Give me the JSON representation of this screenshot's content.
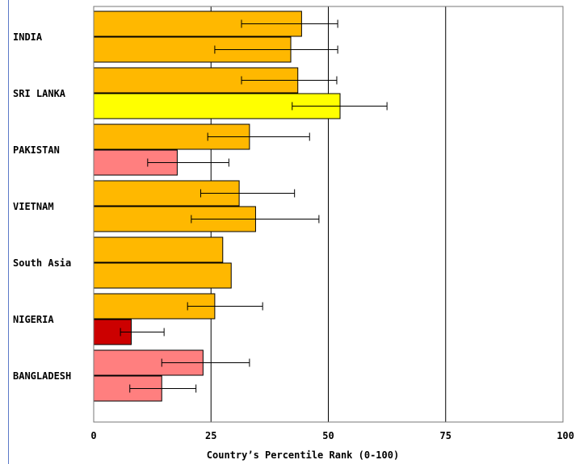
{
  "chart_data": {
    "type": "bar",
    "orientation": "horizontal",
    "xlabel": "Country’s Percentile Rank (0-100)",
    "xlim": [
      0,
      100
    ],
    "xticks": [
      "0",
      "25",
      "50",
      "75",
      "100"
    ],
    "grid": "vertical lines at 25, 50, 75",
    "categories": [
      "INDIA",
      "SRI LANKA",
      "PAKISTAN",
      "VIETNAM",
      "South Asia",
      "NIGERIA",
      "BANGLADESH"
    ],
    "series": [
      {
        "values": [
          44.3,
          43.5,
          33.2,
          31.0,
          27.5,
          25.8,
          23.3
        ],
        "colors": [
          "#ffb800",
          "#ffb800",
          "#ffb800",
          "#ffb800",
          "#ffb800",
          "#ffb800",
          "#ff7f7f"
        ],
        "error_low": [
          31.5,
          31.5,
          24.3,
          22.8,
          null,
          20.0,
          14.5
        ],
        "error_high": [
          52.0,
          51.8,
          46.0,
          42.8,
          null,
          36.0,
          33.2
        ]
      },
      {
        "values": [
          42.0,
          52.5,
          17.8,
          34.5,
          29.3,
          8.0,
          14.5
        ],
        "colors": [
          "#ffb800",
          "#ffff00",
          "#ff7f7f",
          "#ffb800",
          "#ffb800",
          "#cc0000",
          "#ff7f7f"
        ],
        "error_low": [
          25.8,
          42.3,
          11.5,
          20.8,
          null,
          5.7,
          7.7
        ],
        "error_high": [
          52.0,
          62.5,
          28.8,
          48.0,
          null,
          15.0,
          21.8
        ]
      }
    ]
  }
}
